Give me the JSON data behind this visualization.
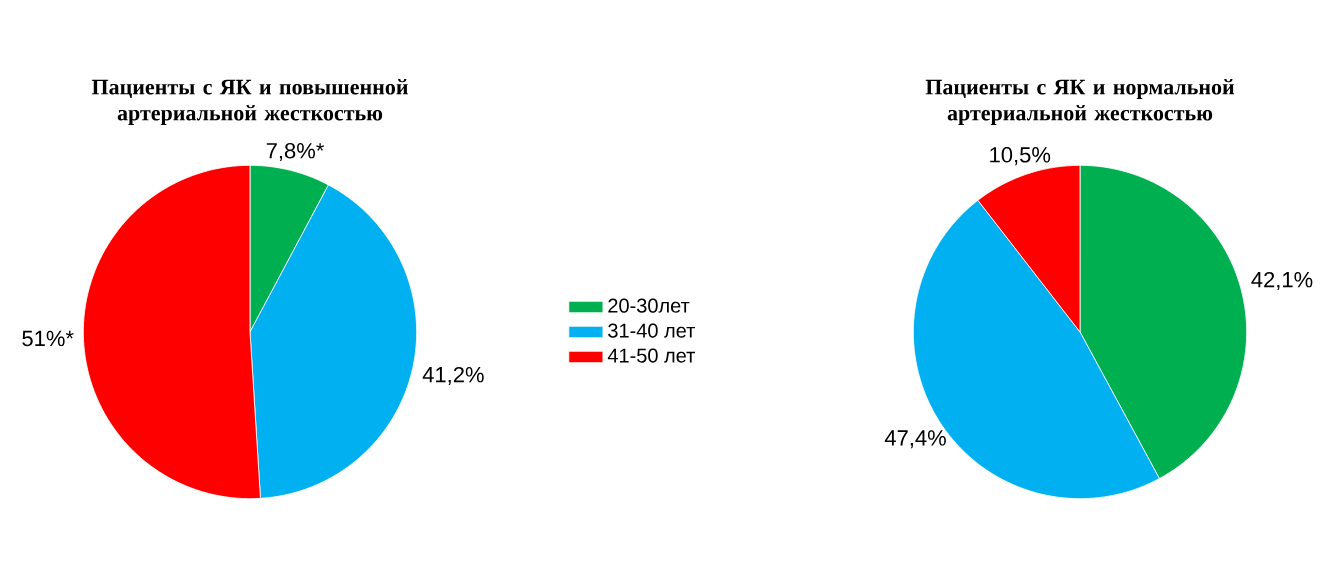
{
  "chart_data": [
    {
      "type": "pie",
      "title": "Пациенты с ЯК и повышенной артериальной жесткостью",
      "categories": [
        "20-30лет",
        "31-40 лет",
        "41-50 лет"
      ],
      "values": [
        7.8,
        41.2,
        51
      ],
      "value_labels": [
        "7,8%*",
        "41,2%",
        "51%*"
      ],
      "colors": [
        "#00b050",
        "#00b0f0",
        "#ff0000"
      ],
      "legend": "right"
    },
    {
      "type": "pie",
      "title": "Пациенты с ЯК и нормальной артериальной жесткостью",
      "values": [
        42.1,
        47.4,
        10.5
      ],
      "value_labels": [
        "42,1%",
        "47,4%",
        "10,5%"
      ],
      "colors": [
        "#00b050",
        "#00b0f0",
        "#ff0000"
      ]
    }
  ]
}
